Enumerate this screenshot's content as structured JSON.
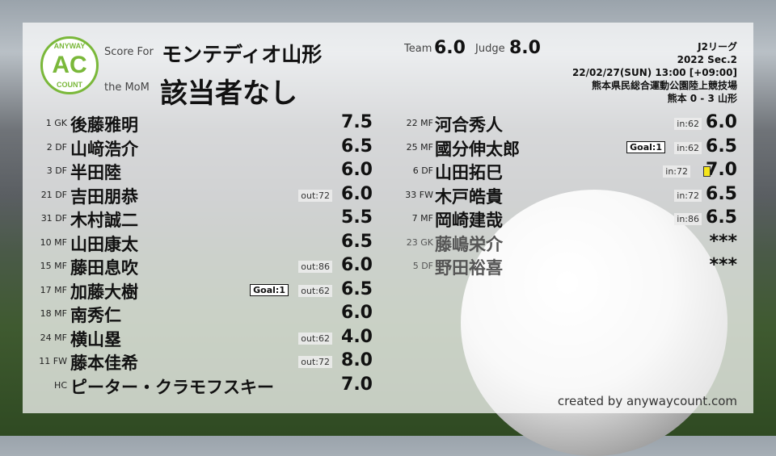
{
  "logo": {
    "top": "ANYWAY",
    "mid": "AC",
    "bottom": "COUNT"
  },
  "header": {
    "score_for_label": "Score For",
    "team": "モンテディオ山形",
    "mom_label": "the MoM",
    "mom": "該当者なし",
    "team_label": "Team",
    "team_score": "6.0",
    "judge_label": "Judge",
    "judge_score": "8.0"
  },
  "match": {
    "league": "J2リーグ",
    "section": "2022 Sec.2",
    "datetime": "22/02/27(SUN) 13:00 [+09:00]",
    "venue": "熊本県民総合運動公園陸上競技場",
    "result": "熊本 0 - 3 山形"
  },
  "left_players": [
    {
      "num": "1",
      "pos": "GK",
      "name": "後藤雅明",
      "score": "7.5"
    },
    {
      "num": "2",
      "pos": "DF",
      "name": "山﨑浩介",
      "score": "6.5"
    },
    {
      "num": "3",
      "pos": "DF",
      "name": "半田陸",
      "score": "6.0"
    },
    {
      "num": "21",
      "pos": "DF",
      "name": "吉田朋恭",
      "score": "6.0",
      "sub": "out:72"
    },
    {
      "num": "31",
      "pos": "DF",
      "name": "木村誠二",
      "score": "5.5"
    },
    {
      "num": "10",
      "pos": "MF",
      "name": "山田康太",
      "score": "6.5"
    },
    {
      "num": "15",
      "pos": "MF",
      "name": "藤田息吹",
      "score": "6.0",
      "sub": "out:86"
    },
    {
      "num": "17",
      "pos": "MF",
      "name": "加藤大樹",
      "score": "6.5",
      "sub": "out:62",
      "goal": "Goal:1"
    },
    {
      "num": "18",
      "pos": "MF",
      "name": "南秀仁",
      "score": "6.0"
    },
    {
      "num": "24",
      "pos": "MF",
      "name": "横山塁",
      "score": "4.0",
      "sub": "out:62"
    },
    {
      "num": "11",
      "pos": "FW",
      "name": "藤本佳希",
      "score": "8.0",
      "sub": "out:72"
    },
    {
      "num": "",
      "pos": "HC",
      "name": "ピーター・クラモフスキー",
      "score": "7.0"
    }
  ],
  "right_players": [
    {
      "num": "22",
      "pos": "MF",
      "name": "河合秀人",
      "score": "6.0",
      "sub": "in:62"
    },
    {
      "num": "25",
      "pos": "MF",
      "name": "國分伸太郎",
      "score": "6.5",
      "sub": "in:62",
      "goal": "Goal:1"
    },
    {
      "num": "6",
      "pos": "DF",
      "name": "山田拓巳",
      "score": "7.0",
      "sub": "in:72",
      "yellow_card": true
    },
    {
      "num": "33",
      "pos": "FW",
      "name": "木戸皓貴",
      "score": "6.5",
      "sub": "in:72"
    },
    {
      "num": "7",
      "pos": "MF",
      "name": "岡崎建哉",
      "score": "6.5",
      "sub": "in:86"
    },
    {
      "num": "23",
      "pos": "GK",
      "name": "藤嶋栄介",
      "score": "***",
      "unused": true
    },
    {
      "num": "5",
      "pos": "DF",
      "name": "野田裕喜",
      "score": "***",
      "unused": true
    }
  ],
  "footer": "created by anywaycount.com",
  "colors": {
    "brand": "#7ab83a",
    "yellow_card": "#f5e51a"
  }
}
